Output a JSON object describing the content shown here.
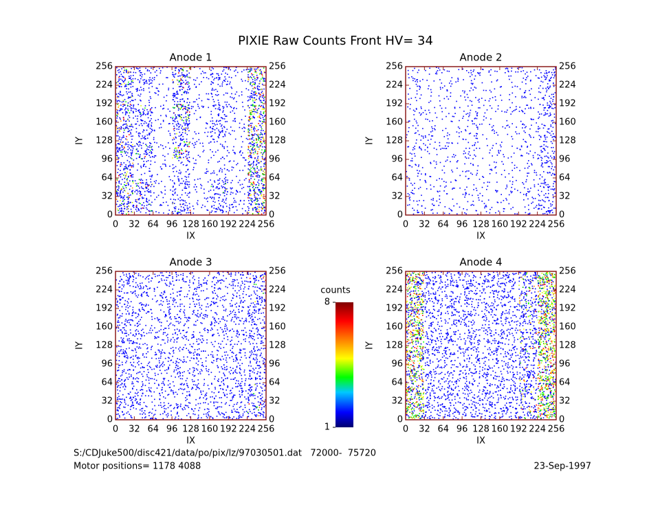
{
  "title": "PIXIE Raw Counts Front HV= 34",
  "footer": {
    "file": "S:/CDJuke500/disc421/data/po/pix/lz/97030501.dat   72000-  75720",
    "motor": "Motor positions= 1178 4088",
    "date": "23-Sep-1997"
  },
  "colorbar": {
    "label": "counts",
    "clim": [
      1,
      8
    ],
    "ticks": [
      1,
      8
    ]
  },
  "chart_data": [
    {
      "type": "heatmap",
      "title": "Anode 1",
      "xlabel": "IX",
      "ylabel": "IY",
      "xlim": [
        0,
        256
      ],
      "ylim": [
        0,
        256
      ],
      "xticks": [
        0,
        32,
        64,
        96,
        128,
        160,
        192,
        224,
        256
      ],
      "yticks": [
        0,
        32,
        64,
        96,
        128,
        160,
        192,
        224,
        256
      ],
      "values": [
        [
          0.5,
          0.35,
          0.1,
          0.35,
          0.1,
          0.3,
          0.15,
          0.55
        ],
        [
          0.45,
          0.4,
          0.1,
          0.3,
          0.1,
          0.35,
          0.15,
          0.6
        ],
        [
          0.4,
          0.15,
          0.08,
          0.2,
          0.08,
          0.12,
          0.1,
          0.55
        ],
        [
          0.45,
          0.4,
          0.1,
          0.5,
          0.1,
          0.15,
          0.1,
          0.6
        ],
        [
          0.4,
          0.3,
          0.08,
          0.4,
          0.08,
          0.3,
          0.1,
          0.55
        ],
        [
          0.45,
          0.35,
          0.1,
          0.55,
          0.1,
          0.3,
          0.12,
          0.6
        ],
        [
          0.35,
          0.15,
          0.08,
          0.35,
          0.08,
          0.15,
          0.1,
          0.5
        ],
        [
          0.45,
          0.3,
          0.1,
          0.5,
          0.1,
          0.3,
          0.12,
          0.55
        ]
      ]
    },
    {
      "type": "heatmap",
      "title": "Anode 2",
      "xlabel": "IX",
      "ylabel": "IY",
      "xlim": [
        0,
        256
      ],
      "ylim": [
        0,
        256
      ],
      "xticks": [
        0,
        32,
        64,
        96,
        128,
        160,
        192,
        224,
        256
      ],
      "yticks": [
        0,
        32,
        64,
        96,
        128,
        160,
        192,
        224,
        256
      ],
      "values": [
        [
          0.14,
          0.1,
          0.08,
          0.1,
          0.1,
          0.08,
          0.12,
          0.28
        ],
        [
          0.12,
          0.1,
          0.1,
          0.12,
          0.08,
          0.1,
          0.12,
          0.25
        ],
        [
          0.12,
          0.08,
          0.08,
          0.1,
          0.08,
          0.08,
          0.1,
          0.22
        ],
        [
          0.12,
          0.1,
          0.1,
          0.15,
          0.08,
          0.08,
          0.12,
          0.25
        ],
        [
          0.12,
          0.1,
          0.08,
          0.14,
          0.08,
          0.08,
          0.12,
          0.25
        ],
        [
          0.12,
          0.1,
          0.08,
          0.16,
          0.08,
          0.08,
          0.12,
          0.25
        ],
        [
          0.1,
          0.08,
          0.08,
          0.12,
          0.08,
          0.08,
          0.1,
          0.22
        ],
        [
          0.12,
          0.1,
          0.08,
          0.14,
          0.08,
          0.1,
          0.12,
          0.25
        ]
      ]
    },
    {
      "type": "heatmap",
      "title": "Anode 3",
      "xlabel": "IX",
      "ylabel": "IY",
      "xlim": [
        0,
        256
      ],
      "ylim": [
        0,
        256
      ],
      "xticks": [
        0,
        32,
        64,
        96,
        128,
        160,
        192,
        224,
        256
      ],
      "yticks": [
        0,
        32,
        64,
        96,
        128,
        160,
        192,
        224,
        256
      ],
      "values": [
        [
          0.3,
          0.22,
          0.2,
          0.22,
          0.2,
          0.22,
          0.25,
          0.35
        ],
        [
          0.3,
          0.22,
          0.2,
          0.22,
          0.2,
          0.22,
          0.25,
          0.35
        ],
        [
          0.28,
          0.22,
          0.2,
          0.2,
          0.2,
          0.2,
          0.22,
          0.3
        ],
        [
          0.28,
          0.2,
          0.2,
          0.22,
          0.2,
          0.2,
          0.22,
          0.3
        ],
        [
          0.28,
          0.2,
          0.2,
          0.2,
          0.2,
          0.2,
          0.22,
          0.3
        ],
        [
          0.28,
          0.22,
          0.2,
          0.22,
          0.2,
          0.22,
          0.22,
          0.3
        ],
        [
          0.28,
          0.2,
          0.2,
          0.2,
          0.2,
          0.2,
          0.22,
          0.32
        ],
        [
          0.3,
          0.22,
          0.2,
          0.2,
          0.2,
          0.22,
          0.25,
          0.35
        ]
      ]
    },
    {
      "type": "heatmap",
      "title": "Anode 4",
      "xlabel": "IX",
      "ylabel": "IY",
      "xlim": [
        0,
        256
      ],
      "ylim": [
        0,
        256
      ],
      "xticks": [
        0,
        32,
        64,
        96,
        128,
        160,
        192,
        224,
        256
      ],
      "yticks": [
        0,
        32,
        64,
        96,
        128,
        160,
        192,
        224,
        256
      ],
      "values": [
        [
          0.7,
          0.3,
          0.28,
          0.28,
          0.28,
          0.28,
          0.4,
          0.75
        ],
        [
          0.7,
          0.3,
          0.28,
          0.28,
          0.28,
          0.28,
          0.42,
          0.75
        ],
        [
          0.68,
          0.28,
          0.26,
          0.26,
          0.26,
          0.26,
          0.4,
          0.72
        ],
        [
          0.68,
          0.28,
          0.26,
          0.28,
          0.26,
          0.26,
          0.4,
          0.72
        ],
        [
          0.68,
          0.28,
          0.26,
          0.28,
          0.26,
          0.26,
          0.4,
          0.72
        ],
        [
          0.68,
          0.28,
          0.26,
          0.26,
          0.26,
          0.26,
          0.4,
          0.72
        ],
        [
          0.7,
          0.3,
          0.28,
          0.28,
          0.28,
          0.28,
          0.42,
          0.75
        ],
        [
          0.72,
          0.32,
          0.3,
          0.3,
          0.3,
          0.3,
          0.45,
          0.78
        ]
      ]
    }
  ]
}
